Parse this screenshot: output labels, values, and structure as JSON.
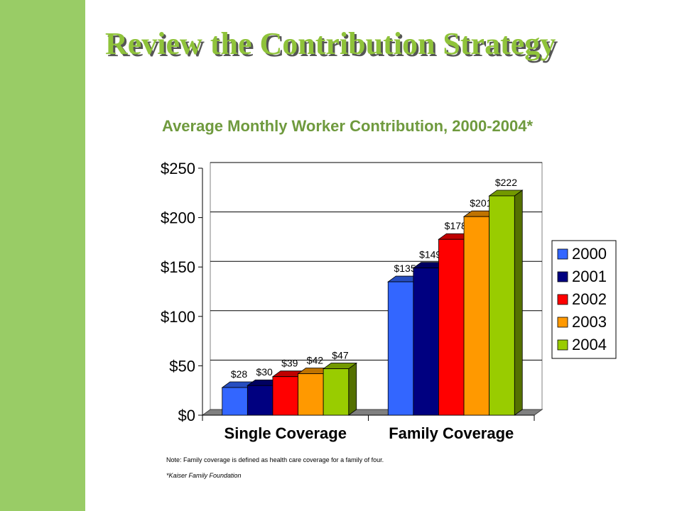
{
  "slide": {
    "title": "Review the Contribution Strategy",
    "accent_color": "#99cc66",
    "title_color": "#8fc33a",
    "title_shadow_color": "#555555",
    "chart_title_color": "#6f9a3e"
  },
  "notes": {
    "definition": "Note: Family coverage is defined as health care coverage for a family of four.",
    "source": "*Kaiser Family Foundation"
  },
  "chart_data": {
    "type": "bar",
    "title": "Average Monthly Worker Contribution, 2000-2004*",
    "categories": [
      "Single Coverage",
      "Family Coverage"
    ],
    "series": [
      {
        "name": "2000",
        "color": "#3366ff",
        "values": [
          28,
          135
        ],
        "labels": [
          "$28",
          "$135"
        ]
      },
      {
        "name": "2001",
        "color": "#000080",
        "values": [
          30,
          149
        ],
        "labels": [
          "$30",
          "$149"
        ]
      },
      {
        "name": "2002",
        "color": "#ff0000",
        "values": [
          39,
          178
        ],
        "labels": [
          "$39",
          "$178"
        ]
      },
      {
        "name": "2003",
        "color": "#ff9900",
        "values": [
          42,
          201
        ],
        "labels": [
          "$42",
          "$201"
        ]
      },
      {
        "name": "2004",
        "color": "#99cc00",
        "values": [
          47,
          222
        ],
        "labels": [
          "$47",
          "$222"
        ]
      }
    ],
    "ylim": [
      0,
      250
    ],
    "yticks": [
      0,
      50,
      100,
      150,
      200,
      250
    ],
    "ytick_labels": [
      "$0",
      "$50",
      "$100",
      "$150",
      "$200",
      "$250"
    ],
    "xlabel": "",
    "ylabel": "",
    "grid": true,
    "three_d": true,
    "legend_position": "right"
  }
}
